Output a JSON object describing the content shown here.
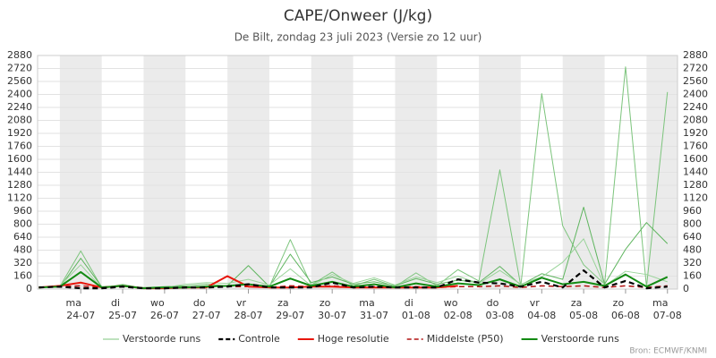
{
  "chart_data": {
    "type": "line",
    "title": "CAPE/Onweer (J/kg)",
    "subtitle": "De Bilt, zondag 23 juli 2023 (Versie zo 12 uur)",
    "source": "Bron: ECMWF/KNMI",
    "x": [
      -0.5,
      0,
      0.5,
      1,
      1.5,
      2,
      2.5,
      3,
      3.5,
      4,
      4.5,
      5,
      5.5,
      6,
      6.5,
      7,
      7.5,
      8,
      8.5,
      9,
      9.5,
      10,
      10.5,
      11,
      11.5,
      12,
      12.5,
      13,
      13.5,
      14,
      14.5
    ],
    "xlim": [
      -0.53,
      14.74
    ],
    "xticks": [
      {
        "value": 0.5,
        "label": "24-07"
      },
      {
        "value": 1.5,
        "label": "25-07"
      },
      {
        "value": 2.5,
        "label": "26-07"
      },
      {
        "value": 3.5,
        "label": "27-07"
      },
      {
        "value": 4.5,
        "label": "28-07"
      },
      {
        "value": 5.5,
        "label": "29-07"
      },
      {
        "value": 6.5,
        "label": "30-07"
      },
      {
        "value": 7.5,
        "label": "31-07"
      },
      {
        "value": 8.5,
        "label": "01-08"
      },
      {
        "value": 9.5,
        "label": "02-08"
      },
      {
        "value": 10.5,
        "label": "03-08"
      },
      {
        "value": 11.5,
        "label": "04-08"
      },
      {
        "value": 12.5,
        "label": "05-08"
      },
      {
        "value": 13.5,
        "label": "06-08"
      },
      {
        "value": 14.5,
        "label": "07-08"
      }
    ],
    "xtick_days": [
      "ma",
      "di",
      "wo",
      "do",
      "vr",
      "za",
      "zo",
      "ma",
      "di",
      "wo",
      "do",
      "vr",
      "za",
      "zo",
      "ma"
    ],
    "ylim": [
      0,
      2880
    ],
    "yticks": [
      0,
      160,
      320,
      480,
      640,
      800,
      960,
      1120,
      1280,
      1440,
      1600,
      1760,
      1920,
      2080,
      2240,
      2400,
      2560,
      2720,
      2880
    ],
    "grid": true,
    "series": [
      {
        "name": "Verstoorde runs",
        "color": "#7cc47c",
        "width": 1,
        "dash": false,
        "values": [
          20,
          30,
          470,
          20,
          50,
          10,
          10,
          20,
          40,
          30,
          60,
          30,
          610,
          50,
          210,
          40,
          120,
          30,
          200,
          40,
          240,
          100,
          1470,
          40,
          2410,
          780,
          300,
          60,
          2740,
          30,
          2430
        ]
      },
      {
        "name": "Controle",
        "color": "#000000",
        "width": 2.2,
        "dash": true,
        "values": [
          20,
          30,
          10,
          10,
          30,
          10,
          10,
          20,
          20,
          30,
          60,
          20,
          20,
          20,
          80,
          20,
          30,
          20,
          20,
          20,
          120,
          80,
          70,
          30,
          90,
          20,
          230,
          20,
          100,
          10,
          30
        ]
      },
      {
        "name": "Hoge resolutie",
        "color": "#e8160c",
        "width": 2,
        "dash": false,
        "values": [
          20,
          40,
          80,
          20,
          40,
          10,
          10,
          20,
          20,
          160,
          30,
          20,
          20,
          30,
          30,
          20,
          20,
          20,
          20,
          20,
          40,
          null,
          null,
          null,
          null,
          null,
          null,
          null,
          null,
          null,
          null
        ]
      },
      {
        "name": "Middelste (P50)",
        "color": "#b01010",
        "width": 1.5,
        "dash": true,
        "values": [
          20,
          30,
          40,
          20,
          30,
          10,
          10,
          20,
          20,
          30,
          30,
          20,
          40,
          30,
          40,
          20,
          30,
          20,
          30,
          20,
          30,
          30,
          40,
          20,
          40,
          30,
          40,
          20,
          40,
          20,
          40
        ]
      },
      {
        "name": "Verstoorde runs",
        "color": "#138a13",
        "width": 2,
        "dash": false,
        "values": [
          20,
          30,
          210,
          20,
          40,
          10,
          20,
          20,
          30,
          40,
          60,
          30,
          130,
          40,
          90,
          30,
          60,
          20,
          70,
          30,
          70,
          50,
          120,
          30,
          140,
          60,
          90,
          40,
          180,
          30,
          150
        ]
      },
      {
        "color": "#5fb55f",
        "width": 1,
        "dash": false,
        "values": [
          30,
          20,
          380,
          30,
          40,
          20,
          30,
          40,
          60,
          40,
          290,
          30,
          430,
          80,
          150,
          60,
          90,
          40,
          130,
          60,
          110,
          80,
          280,
          50,
          190,
          120,
          1010,
          60,
          490,
          820,
          560
        ]
      },
      {
        "color": "#9ad49a",
        "width": 1,
        "dash": false,
        "values": [
          10,
          40,
          300,
          10,
          60,
          10,
          20,
          60,
          80,
          70,
          120,
          50,
          250,
          40,
          180,
          70,
          140,
          50,
          150,
          80,
          160,
          70,
          230,
          60,
          150,
          330,
          620,
          40,
          220,
          180,
          90
        ]
      }
    ]
  }
}
